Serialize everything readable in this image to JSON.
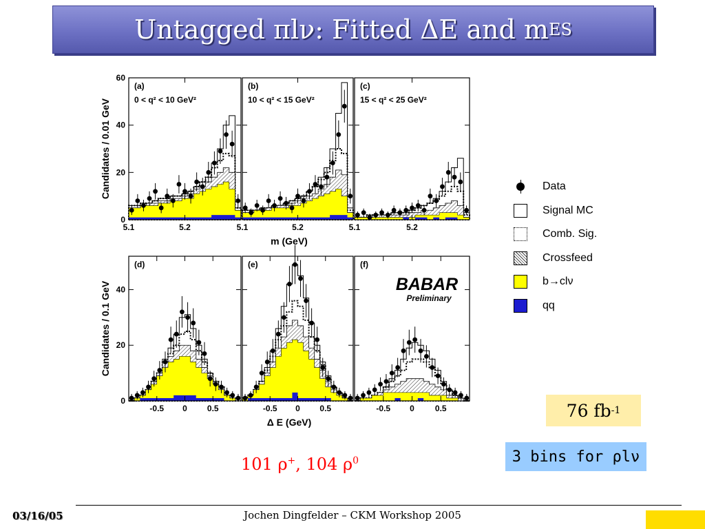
{
  "slide": {
    "title_main": "Untagged πlν: Fitted ΔE and m",
    "title_sub": "ES",
    "luminosity_value": "76 fb",
    "luminosity_exp": "-1",
    "bins_note": "3 bins for ρlν",
    "counts_a": "101 ρ",
    "counts_a_sup": "+",
    "counts_b": ", 104 ρ",
    "counts_b_sup": "0",
    "footer_date": "03/16/05",
    "footer_center": "Jochen Dingfelder –  CKM Workshop 2005"
  },
  "legend": [
    {
      "key": "data",
      "label": "Data"
    },
    {
      "key": "signal",
      "label": "Signal MC"
    },
    {
      "key": "comb",
      "label": "Comb. Sig."
    },
    {
      "key": "crossfeed",
      "label": "Crossfeed"
    },
    {
      "key": "bcl",
      "label": "b→clν"
    },
    {
      "key": "qq",
      "label": "qq"
    }
  ],
  "colors": {
    "bcl": "#ffff00",
    "qq": "#1c1cd0",
    "title_bg": "#6d71c4",
    "lumi_bg": "#ffeeaa",
    "bins_bg": "#99ccff",
    "counts": "#ff0000",
    "footer_square": "#ffdd00"
  },
  "watermark": {
    "logo": "BABAR",
    "subtitle": "Preliminary"
  },
  "chart_data": [
    {
      "id": "top-row",
      "type": "bar",
      "xlabel": "m_ES (GeV)",
      "ylabel": "Candidates / 0.01 GeV",
      "xlim": [
        5.1,
        5.3
      ],
      "ylim": [
        0,
        60
      ],
      "xticks": [
        "5.1",
        "5.2"
      ],
      "yticks": [
        "0",
        "20",
        "40",
        "60"
      ],
      "panels": [
        {
          "label": "(a)",
          "range": "0 < q² < 10 GeV²",
          "x": [
            5.11,
            5.12,
            5.13,
            5.14,
            5.15,
            5.16,
            5.17,
            5.18,
            5.19,
            5.2,
            5.21,
            5.22,
            5.23,
            5.24,
            5.25,
            5.26,
            5.27,
            5.28,
            5.29
          ],
          "qq": [
            1,
            1,
            1,
            1,
            1,
            1,
            1,
            1,
            1,
            1,
            1,
            1,
            1,
            1,
            2,
            2,
            2,
            2,
            1
          ],
          "bcl": [
            5,
            5,
            6,
            6,
            6,
            7,
            7,
            8,
            8,
            9,
            9,
            11,
            12,
            13,
            14,
            15,
            16,
            13,
            4
          ],
          "cross": [
            5,
            5,
            6,
            7,
            7,
            8,
            8,
            9,
            9,
            10,
            11,
            13,
            14,
            16,
            18,
            20,
            22,
            20,
            4
          ],
          "comb": [
            6,
            6,
            7,
            7,
            8,
            9,
            9,
            10,
            10,
            11,
            12,
            14,
            16,
            18,
            22,
            25,
            28,
            27,
            5
          ],
          "signal": [
            6,
            6,
            7,
            7,
            8,
            9,
            9,
            10,
            10,
            11,
            12,
            14,
            16,
            18,
            24,
            30,
            40,
            44,
            5
          ],
          "data": [
            4,
            8,
            6,
            9,
            12,
            5,
            10,
            8,
            15,
            12,
            10,
            16,
            14,
            20,
            24,
            29,
            36,
            32,
            8
          ]
        },
        {
          "label": "(b)",
          "range": "10 < q² < 15 GeV²",
          "x": [
            5.11,
            5.12,
            5.13,
            5.14,
            5.15,
            5.16,
            5.17,
            5.18,
            5.19,
            5.2,
            5.21,
            5.22,
            5.23,
            5.24,
            5.25,
            5.26,
            5.27,
            5.28,
            5.29
          ],
          "qq": [
            1,
            1,
            1,
            1,
            1,
            1,
            1,
            1,
            1,
            1,
            1,
            1,
            1,
            1,
            1,
            2,
            2,
            2,
            1
          ],
          "bcl": [
            3,
            3,
            4,
            4,
            4,
            5,
            5,
            5,
            6,
            6,
            7,
            8,
            9,
            10,
            11,
            12,
            13,
            10,
            3
          ],
          "cross": [
            3,
            3,
            4,
            4,
            5,
            5,
            6,
            6,
            7,
            8,
            9,
            10,
            11,
            13,
            15,
            18,
            21,
            19,
            3
          ],
          "comb": [
            4,
            4,
            4,
            5,
            5,
            6,
            6,
            7,
            8,
            9,
            10,
            12,
            14,
            17,
            20,
            25,
            30,
            28,
            4
          ],
          "signal": [
            4,
            4,
            4,
            5,
            5,
            6,
            6,
            7,
            8,
            9,
            10,
            12,
            14,
            18,
            22,
            30,
            45,
            58,
            5
          ],
          "data": [
            5,
            3,
            6,
            4,
            8,
            6,
            9,
            7,
            5,
            10,
            8,
            12,
            15,
            14,
            18,
            24,
            36,
            48,
            10
          ]
        },
        {
          "label": "(c)",
          "range": "15 < q² < 25 GeV²",
          "x": [
            5.11,
            5.12,
            5.13,
            5.14,
            5.15,
            5.16,
            5.17,
            5.18,
            5.19,
            5.2,
            5.21,
            5.22,
            5.23,
            5.24,
            5.25,
            5.26,
            5.27,
            5.28,
            5.29
          ],
          "qq": [
            0,
            0,
            0,
            0,
            0,
            0,
            0,
            0,
            1,
            0,
            1,
            1,
            0,
            1,
            0,
            1,
            1,
            0,
            0
          ],
          "bcl": [
            1,
            1,
            1,
            1,
            1,
            1,
            1,
            1,
            1,
            1,
            2,
            2,
            2,
            2,
            3,
            3,
            3,
            2,
            1
          ],
          "cross": [
            1,
            1,
            1,
            2,
            2,
            2,
            2,
            2,
            2,
            3,
            3,
            4,
            4,
            5,
            6,
            7,
            8,
            6,
            1
          ],
          "comb": [
            1,
            1,
            2,
            2,
            2,
            2,
            3,
            3,
            3,
            4,
            5,
            6,
            7,
            8,
            10,
            12,
            14,
            12,
            2
          ],
          "signal": [
            1,
            1,
            2,
            2,
            2,
            2,
            3,
            3,
            3,
            4,
            5,
            6,
            7,
            9,
            12,
            16,
            22,
            26,
            3
          ],
          "data": [
            2,
            3,
            1,
            2,
            3,
            2,
            4,
            3,
            4,
            5,
            6,
            4,
            10,
            8,
            14,
            20,
            18,
            16,
            4
          ]
        }
      ]
    },
    {
      "id": "bottom-row",
      "type": "bar",
      "xlabel": "Δ E (GeV)",
      "ylabel": "Candidates / 0.1 GeV",
      "xlim": [
        -1.0,
        1.0
      ],
      "ylim": [
        0,
        52
      ],
      "xticks": [
        "-0.5",
        "0",
        "0.5"
      ],
      "yticks": [
        "0",
        "20",
        "40"
      ],
      "panels": [
        {
          "label": "(d)",
          "x": [
            -0.95,
            -0.85,
            -0.75,
            -0.65,
            -0.55,
            -0.45,
            -0.35,
            -0.25,
            -0.15,
            -0.05,
            0.05,
            0.15,
            0.25,
            0.35,
            0.45,
            0.55,
            0.65,
            0.75,
            0.85,
            0.95
          ],
          "qq": [
            0,
            0,
            1,
            1,
            1,
            1,
            1,
            1,
            2,
            2,
            2,
            2,
            1,
            1,
            1,
            1,
            1,
            0,
            0,
            0
          ],
          "bcl": [
            0,
            1,
            2,
            4,
            6,
            9,
            12,
            14,
            15,
            16,
            16,
            14,
            12,
            10,
            8,
            6,
            4,
            2,
            1,
            0
          ],
          "cross": [
            0,
            1,
            2,
            4,
            7,
            10,
            14,
            16,
            18,
            20,
            20,
            18,
            15,
            12,
            9,
            7,
            5,
            2,
            1,
            0
          ],
          "comb": [
            0,
            1,
            2,
            4,
            7,
            10,
            14,
            17,
            20,
            24,
            25,
            22,
            18,
            14,
            10,
            7,
            5,
            2,
            1,
            0
          ],
          "signal": [
            0,
            1,
            2,
            4,
            7,
            10,
            15,
            19,
            24,
            30,
            31,
            26,
            20,
            15,
            10,
            7,
            5,
            2,
            1,
            0
          ],
          "data": [
            1,
            2,
            3,
            5,
            8,
            11,
            14,
            22,
            24,
            32,
            30,
            28,
            21,
            17,
            8,
            6,
            5,
            3,
            2,
            1
          ]
        },
        {
          "label": "(e)",
          "x": [
            -0.95,
            -0.85,
            -0.75,
            -0.65,
            -0.55,
            -0.45,
            -0.35,
            -0.25,
            -0.15,
            -0.05,
            0.05,
            0.15,
            0.25,
            0.35,
            0.45,
            0.55,
            0.65,
            0.75,
            0.85,
            0.95
          ],
          "qq": [
            0,
            1,
            1,
            1,
            1,
            1,
            1,
            1,
            1,
            3,
            1,
            1,
            1,
            1,
            1,
            1,
            0,
            0,
            0,
            0
          ],
          "bcl": [
            1,
            2,
            4,
            6,
            9,
            12,
            16,
            19,
            21,
            22,
            21,
            18,
            15,
            12,
            8,
            5,
            3,
            2,
            1,
            0
          ],
          "cross": [
            1,
            2,
            4,
            6,
            10,
            14,
            19,
            23,
            27,
            29,
            27,
            23,
            19,
            15,
            11,
            7,
            4,
            2,
            1,
            0
          ],
          "comb": [
            1,
            2,
            4,
            7,
            11,
            16,
            22,
            27,
            32,
            36,
            34,
            29,
            23,
            18,
            13,
            8,
            5,
            3,
            1,
            0
          ],
          "signal": [
            1,
            2,
            4,
            7,
            12,
            18,
            26,
            34,
            42,
            49,
            45,
            37,
            28,
            20,
            14,
            9,
            5,
            3,
            1,
            0
          ],
          "data": [
            1,
            2,
            5,
            10,
            14,
            18,
            24,
            30,
            42,
            49,
            44,
            36,
            28,
            22,
            12,
            8,
            5,
            3,
            2,
            1
          ]
        },
        {
          "label": "(f)",
          "x": [
            -0.95,
            -0.85,
            -0.75,
            -0.65,
            -0.55,
            -0.45,
            -0.35,
            -0.25,
            -0.15,
            -0.05,
            0.05,
            0.15,
            0.25,
            0.35,
            0.45,
            0.55,
            0.65,
            0.75,
            0.85,
            0.95
          ],
          "qq": [
            0,
            0,
            0,
            0,
            0,
            0,
            0,
            1,
            0,
            0,
            0,
            1,
            0,
            0,
            0,
            0,
            0,
            0,
            0,
            0
          ],
          "bcl": [
            0,
            1,
            1,
            2,
            2,
            3,
            3,
            3,
            3,
            3,
            3,
            3,
            3,
            2,
            2,
            2,
            1,
            1,
            0,
            0
          ],
          "cross": [
            0,
            1,
            1,
            2,
            3,
            4,
            5,
            6,
            7,
            8,
            8,
            8,
            7,
            6,
            5,
            4,
            2,
            1,
            1,
            0
          ],
          "comb": [
            0,
            1,
            1,
            2,
            3,
            5,
            7,
            9,
            11,
            14,
            15,
            15,
            14,
            12,
            9,
            6,
            4,
            2,
            1,
            0
          ],
          "signal": [
            0,
            1,
            1,
            2,
            3,
            5,
            8,
            11,
            15,
            19,
            21,
            20,
            18,
            15,
            11,
            7,
            4,
            2,
            1,
            0
          ],
          "data": [
            1,
            2,
            3,
            4,
            6,
            7,
            10,
            12,
            18,
            21,
            22,
            18,
            16,
            12,
            9,
            6,
            4,
            3,
            2,
            1
          ]
        }
      ]
    }
  ]
}
